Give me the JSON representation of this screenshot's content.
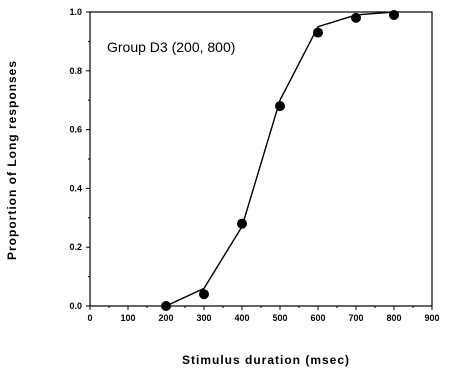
{
  "chart_data": {
    "type": "line",
    "title": "",
    "annotation": "Group D3 (200, 800)",
    "xlabel": "Stimulus  duration  (msec)",
    "ylabel": "Proportion  of  Long  responses",
    "xlim": [
      0,
      900
    ],
    "ylim": [
      0.0,
      1.0
    ],
    "xticks": [
      "0",
      "100",
      "200",
      "300",
      "400",
      "500",
      "600",
      "700",
      "800",
      "900"
    ],
    "yticks": [
      "0.0",
      "0.2",
      "0.4",
      "0.6",
      "0.8",
      "1.0"
    ],
    "grid": false,
    "series": [
      {
        "name": "",
        "points": {
          "x": [
            200,
            300,
            400,
            500,
            600,
            700,
            800
          ],
          "y": [
            0.0,
            0.04,
            0.28,
            0.68,
            0.93,
            0.98,
            0.99
          ]
        },
        "fit_line": {
          "x": [
            200,
            300,
            400,
            500,
            600,
            700,
            800
          ],
          "y": [
            0.0,
            0.06,
            0.27,
            0.7,
            0.95,
            0.99,
            1.0
          ]
        }
      }
    ],
    "colors": {
      "marker": "#000000",
      "line": "#000000"
    }
  }
}
